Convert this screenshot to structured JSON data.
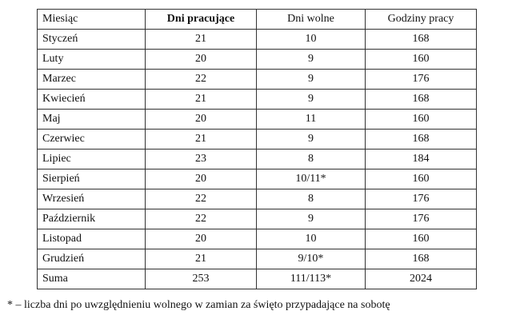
{
  "table": {
    "header": [
      "Miesiąc",
      "Dni pracujące",
      "Dni wolne",
      "Godziny pracy"
    ],
    "rows": [
      [
        "Styczeń",
        "21",
        "10",
        "168"
      ],
      [
        "Luty",
        "20",
        "9",
        "160"
      ],
      [
        "Marzec",
        "22",
        "9",
        "176"
      ],
      [
        "Kwiecień",
        "21",
        "9",
        "168"
      ],
      [
        "Maj",
        "20",
        "11",
        "160"
      ],
      [
        "Czerwiec",
        "21",
        "9",
        "168"
      ],
      [
        "Lipiec",
        "23",
        "8",
        "184"
      ],
      [
        "Sierpień",
        "20",
        "10/11*",
        "160"
      ],
      [
        "Wrzesień",
        "22",
        "8",
        "176"
      ],
      [
        "Październik",
        "22",
        "9",
        "176"
      ],
      [
        "Listopad",
        "20",
        "10",
        "160"
      ],
      [
        "Grudzień",
        "21",
        "9/10*",
        "168"
      ],
      [
        "Suma",
        "253",
        "111/113*",
        "2024"
      ]
    ]
  },
  "footnote": "* – liczba dni po uwzględnieniu wolnego w zamian za święto przypadające na sobotę"
}
